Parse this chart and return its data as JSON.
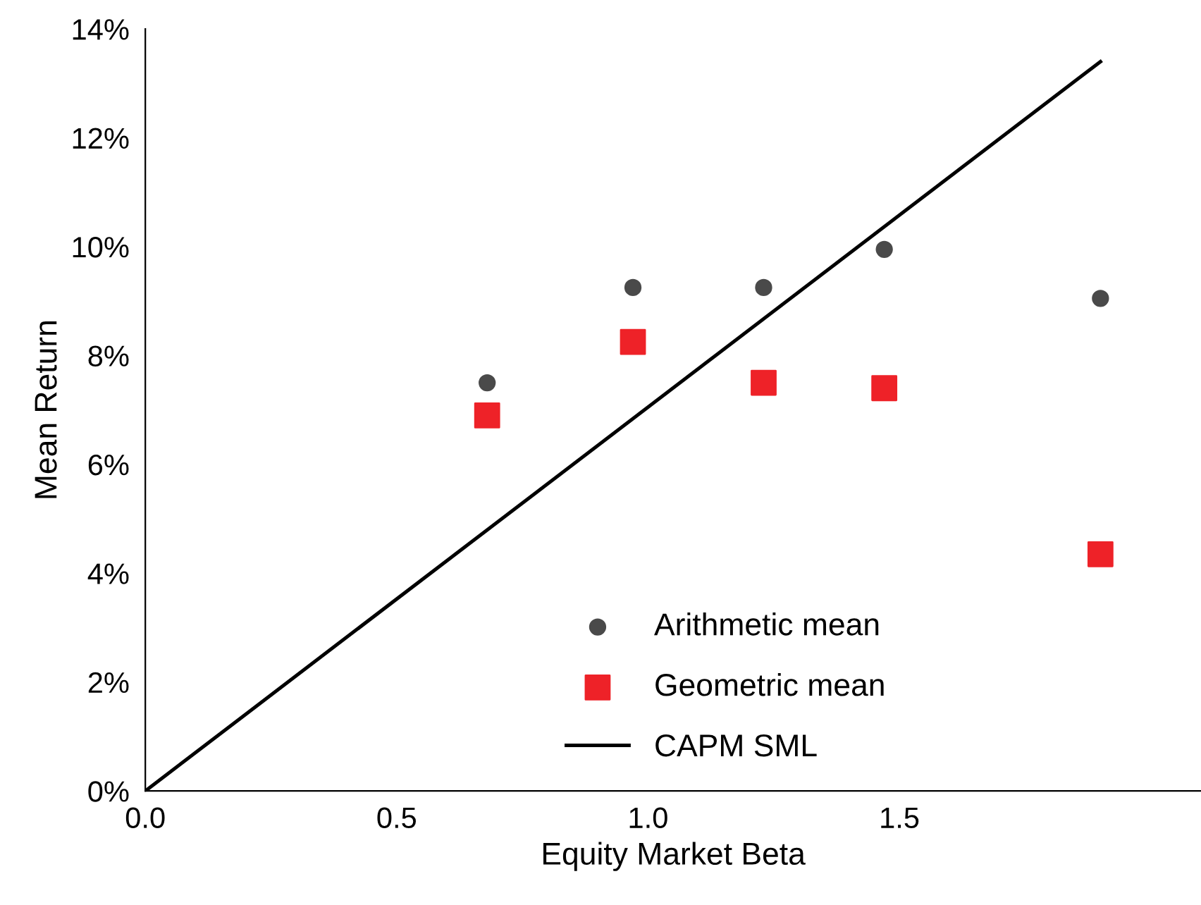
{
  "chart_data": {
    "type": "scatter",
    "xlabel": "Equity Market Beta",
    "ylabel": "Mean Return",
    "series": [
      {
        "name": "Arithmetic mean",
        "marker": "circle",
        "color": "#4a4a4a",
        "x": [
          0.68,
          0.97,
          1.23,
          1.47,
          1.9
        ],
        "values": [
          7.5,
          9.25,
          9.25,
          9.95,
          9.05
        ]
      },
      {
        "name": "Geometric mean",
        "marker": "square",
        "color": "#ee2228",
        "x": [
          0.68,
          0.97,
          1.23,
          1.47,
          1.9
        ],
        "values": [
          6.9,
          8.25,
          7.5,
          7.4,
          4.35
        ]
      },
      {
        "name": "CAPM SML",
        "type": "line",
        "marker": "none",
        "color": "#000000",
        "x": [
          0,
          1.9
        ],
        "values": [
          0,
          13.4
        ]
      }
    ],
    "xlim": [
      0,
      2.1
    ],
    "ylim": [
      0,
      14
    ],
    "xticks": [
      {
        "value": 0,
        "label": "0.0"
      },
      0.5,
      {
        "value": 1,
        "label": "1.0"
      },
      1.5
    ],
    "yticks": [
      {
        "value": 0,
        "label": "0%"
      },
      {
        "value": 2,
        "label": "2%"
      },
      {
        "value": 4,
        "label": "4%"
      },
      {
        "value": 6,
        "label": "6%"
      },
      {
        "value": 8,
        "label": "8%"
      },
      {
        "value": 10,
        "label": "10%"
      },
      {
        "value": 12,
        "label": "12%"
      },
      {
        "value": 14,
        "label": "14%"
      }
    ],
    "grid": false,
    "legend": "bottom"
  }
}
